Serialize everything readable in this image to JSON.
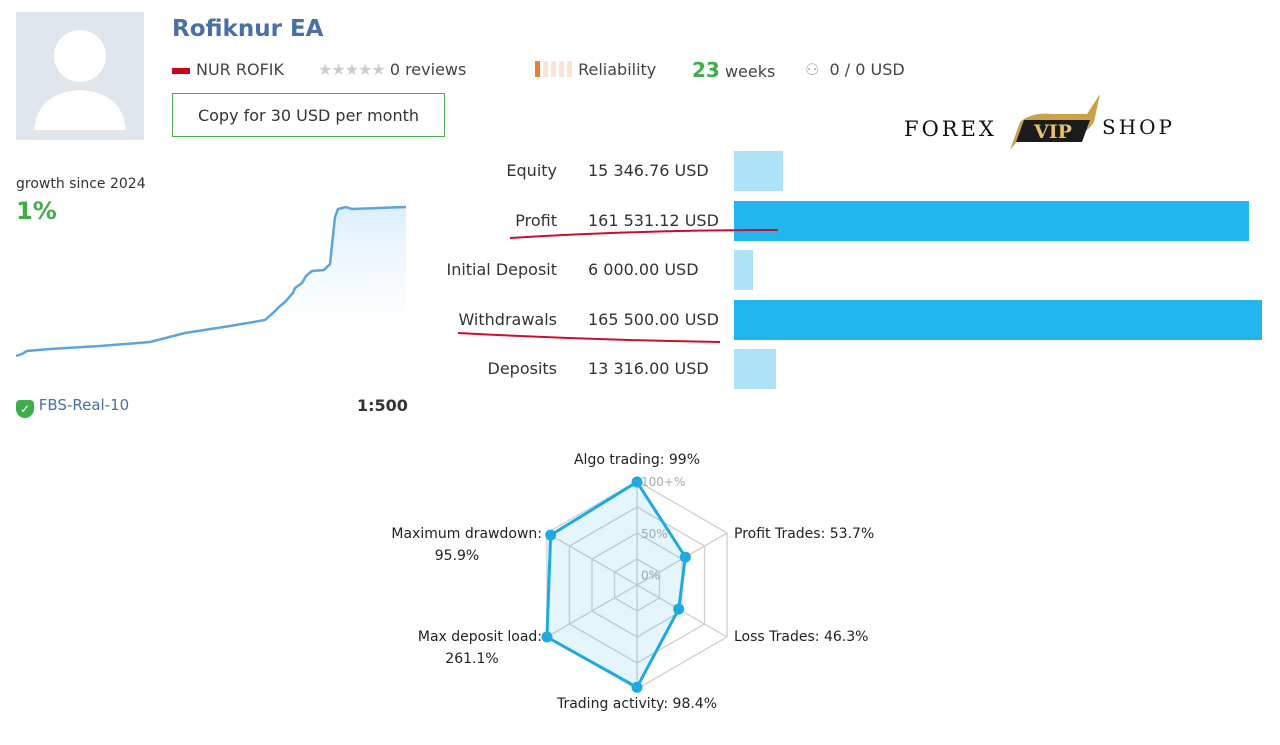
{
  "header": {
    "title": "Rofiknur EA",
    "author": "NUR ROFIK",
    "reviews": "0 reviews",
    "reliability": "Reliability",
    "weeks_num": "23",
    "weeks_label": "weeks",
    "subscribers": "0 / 0 USD",
    "copy_button": "Copy for 30 USD per month"
  },
  "logo": {
    "left": "FOREX",
    "center": "VIP",
    "right": "SHOP"
  },
  "growth": {
    "label": "growth since 2024",
    "value": "1%",
    "server": "FBS-Real-10",
    "leverage": "1:500"
  },
  "stats": [
    {
      "label": "Equity",
      "value": "15 346.76 USD",
      "amount": 15346.76,
      "color": "#aee3f7"
    },
    {
      "label": "Profit",
      "value": "161 531.12 USD",
      "amount": 161531.12,
      "color": "#22b5ee"
    },
    {
      "label": "Initial Deposit",
      "value": "6 000.00 USD",
      "amount": 6000,
      "color": "#aee3f7"
    },
    {
      "label": "Withdrawals",
      "value": "165 500.00 USD",
      "amount": 165500,
      "color": "#22b5ee"
    },
    {
      "label": "Deposits",
      "value": "13 316.00 USD",
      "amount": 13316,
      "color": "#aee3f7"
    }
  ],
  "chart_data": {
    "type": "radar",
    "axes": [
      "Algo trading: 99%",
      "Profit Trades: 53.7%",
      "Loss Trades: 46.3%",
      "Trading activity: 98.4%",
      "Max deposit load: 261.1%",
      "Maximum drawdown: 95.9%"
    ],
    "labels": [
      [
        "Algo trading: 99%"
      ],
      [
        "Profit Trades: 53.7%"
      ],
      [
        "Loss Trades: 46.3%"
      ],
      [
        "Trading activity: 98.4%"
      ],
      [
        "Max deposit load:",
        "261.1%"
      ],
      [
        "Maximum drawdown:",
        "95.9%"
      ]
    ],
    "values": [
      99,
      53.7,
      46.3,
      98.4,
      261.1,
      95.9
    ],
    "scale_max": 100,
    "ticks": [
      "0%",
      "50%",
      "100+%"
    ],
    "color": "#1fa9e1"
  }
}
